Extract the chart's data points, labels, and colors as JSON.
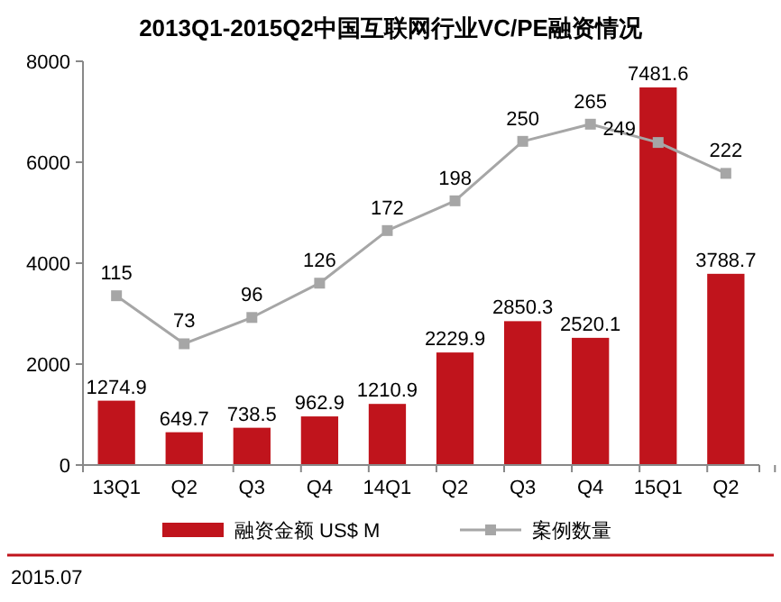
{
  "chart_data": {
    "type": "bar",
    "title": "2013Q1-2015Q2中国互联网行业VC/PE融资情况",
    "categories": [
      "13Q1",
      "Q2",
      "Q3",
      "Q4",
      "14Q1",
      "Q2",
      "Q3",
      "Q4",
      "15Q1",
      "Q2"
    ],
    "series": [
      {
        "name": "融资金额 US$ M",
        "color": "#c0141c",
        "values": [
          1274.9,
          649.7,
          738.5,
          962.9,
          1210.9,
          2229.9,
          2850.3,
          2520.1,
          7481.6,
          3788.7
        ]
      },
      {
        "name": "案例数量",
        "type": "line",
        "axis": "y2",
        "color": "#a6a6a6",
        "marker": "square",
        "values": [
          115,
          73,
          96,
          126,
          172,
          198,
          250,
          265,
          249,
          222
        ]
      }
    ],
    "ylim": [
      0,
      8000
    ],
    "yticks": [
      0,
      2000,
      4000,
      6000,
      8000
    ],
    "y2lim": [
      -33,
      320
    ],
    "data_labels": true,
    "legend": "bottom",
    "grid": false,
    "annotations": [
      "2015.07"
    ]
  }
}
